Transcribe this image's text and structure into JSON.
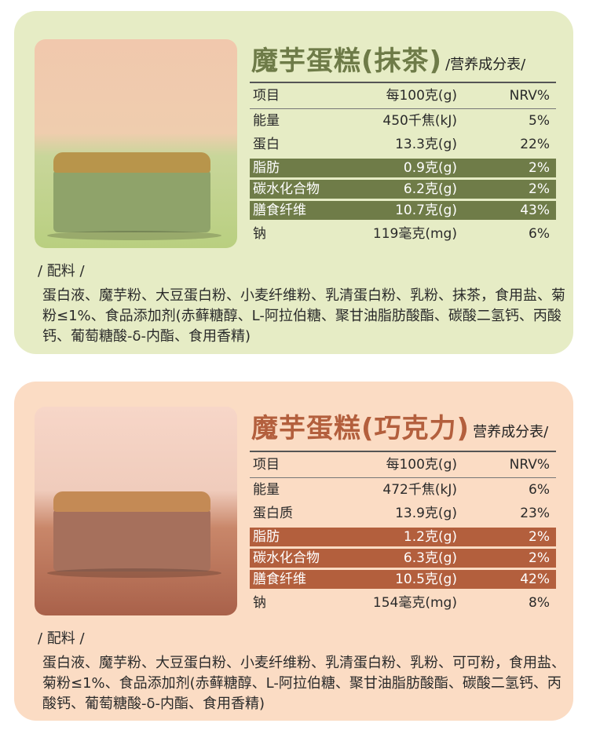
{
  "cards": [
    {
      "title": "魔芋蛋糕(抹茶)",
      "subtitle": "/营养成分表/",
      "headers": [
        "项目",
        "每100克(g)",
        "NRV%"
      ],
      "rows": [
        {
          "item": "能量",
          "amount": "450千焦(kJ)",
          "nrv": "5%",
          "highlight": false
        },
        {
          "item": "蛋白",
          "amount": "13.3克(g)",
          "nrv": "22%",
          "highlight": false
        },
        {
          "item": "脂肪",
          "amount": "0.9克(g)",
          "nrv": "2%",
          "highlight": true
        },
        {
          "item": "碳水化合物",
          "amount": "6.2克(g)",
          "nrv": "2%",
          "highlight": true
        },
        {
          "item": "膳食纤维",
          "amount": "10.7克(g)",
          "nrv": "43%",
          "highlight": true
        },
        {
          "item": "钠",
          "amount": "119毫克(mg)",
          "nrv": "6%",
          "highlight": false
        }
      ],
      "ingredients_label": "/ 配料 /",
      "ingredients": "蛋白液、魔芋粉、大豆蛋白粉、小麦纤维粉、乳清蛋白粉、乳粉、抹茶，食用盐、菊粉≤1%、食品添加剂(赤藓糖醇、L-阿拉伯糖、聚甘油脂肪酸酯、碳酸二氢钙、丙酸钙、葡萄糖酸-δ-内酯、食用香精)",
      "accent": "#6f7c48",
      "background": "#e6ecc5"
    },
    {
      "title": "魔芋蛋糕(巧克力)",
      "subtitle": "营养成分表/",
      "headers": [
        "项目",
        "每100克(g)",
        "NRV%"
      ],
      "rows": [
        {
          "item": "能量",
          "amount": "472千焦(kJ)",
          "nrv": "6%",
          "highlight": false
        },
        {
          "item": "蛋白质",
          "amount": "13.9克(g)",
          "nrv": "23%",
          "highlight": false
        },
        {
          "item": "脂肪",
          "amount": "1.2克(g)",
          "nrv": "2%",
          "highlight": true
        },
        {
          "item": "碳水化合物",
          "amount": "6.3克(g)",
          "nrv": "2%",
          "highlight": true
        },
        {
          "item": "膳食纤维",
          "amount": "10.5克(g)",
          "nrv": "42%",
          "highlight": true
        },
        {
          "item": "钠",
          "amount": "154毫克(mg)",
          "nrv": "8%",
          "highlight": false
        }
      ],
      "ingredients_label": "/ 配料 /",
      "ingredients": "蛋白液、魔芋粉、大豆蛋白粉、小麦纤维粉、乳清蛋白粉、乳粉、可可粉，食用盐、菊粉≤1%、食品添加剂(赤藓糖醇、L-阿拉伯糖、聚甘油脂肪酸酯、碳酸二氢钙、丙酸钙、葡萄糖酸-δ-内酯、食用香精)",
      "accent": "#b35f3d",
      "background": "#fbdcc4"
    }
  ]
}
